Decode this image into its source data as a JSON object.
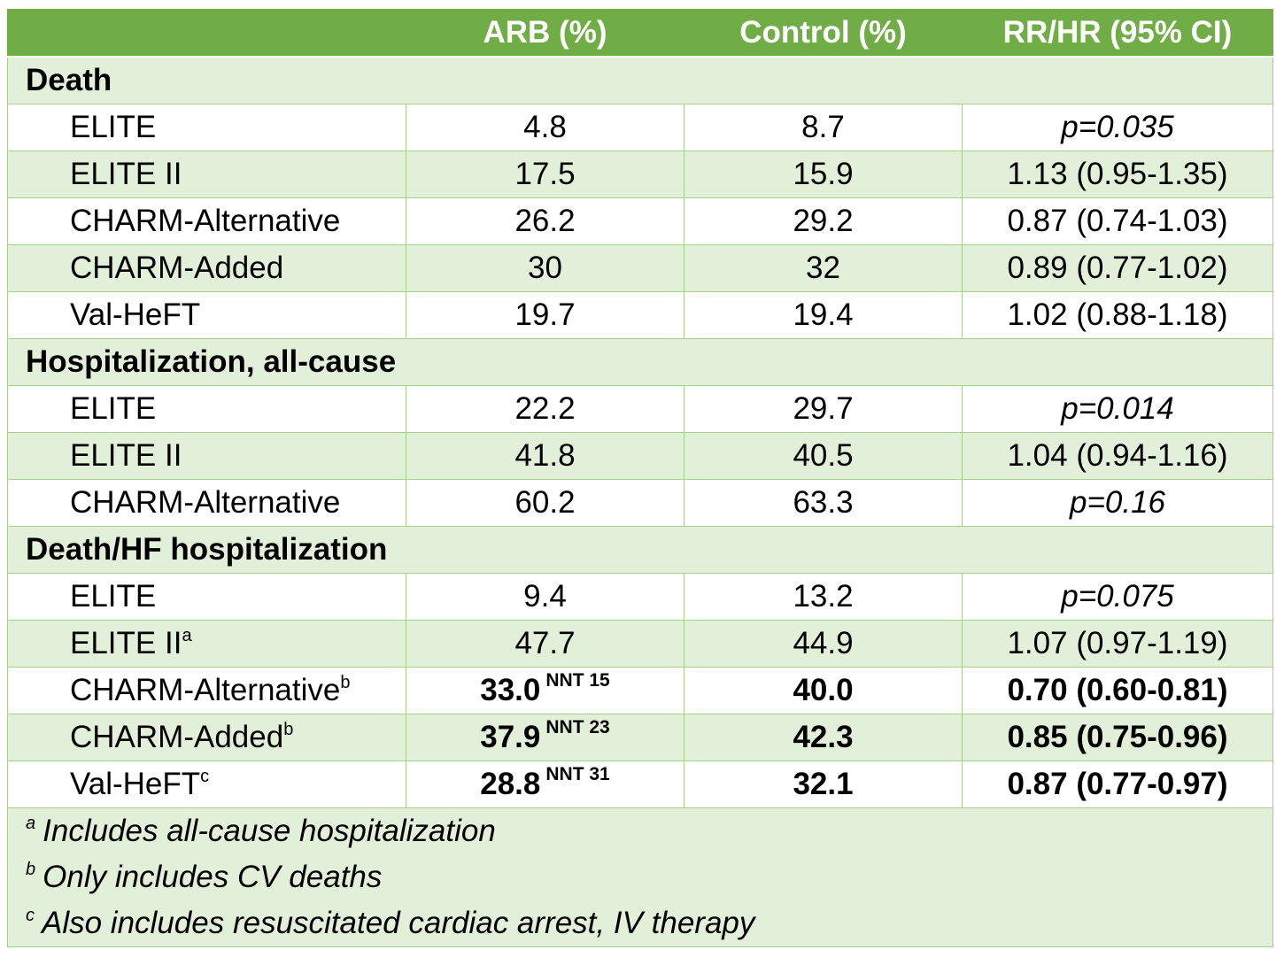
{
  "header": {
    "col0": "",
    "col1": "ARB (%)",
    "col2": "Control (%)",
    "col3": "RR/HR (95% CI)"
  },
  "sections": [
    {
      "title": "Death",
      "rows": [
        {
          "study": "ELITE",
          "sup": "",
          "arb": "4.8",
          "nnt": "",
          "control": "8.7",
          "rr": "p=0.035",
          "italic": true,
          "bold": false
        },
        {
          "study": "ELITE II",
          "sup": "",
          "arb": "17.5",
          "nnt": "",
          "control": "15.9",
          "rr": "1.13 (0.95-1.35)",
          "italic": false,
          "bold": false
        },
        {
          "study": "CHARM-Alternative",
          "sup": "",
          "arb": "26.2",
          "nnt": "",
          "control": "29.2",
          "rr": "0.87 (0.74-1.03)",
          "italic": false,
          "bold": false
        },
        {
          "study": "CHARM-Added",
          "sup": "",
          "arb": "30",
          "nnt": "",
          "control": "32",
          "rr": "0.89 (0.77-1.02)",
          "italic": false,
          "bold": false
        },
        {
          "study": "Val-HeFT",
          "sup": "",
          "arb": "19.7",
          "nnt": "",
          "control": "19.4",
          "rr": "1.02 (0.88-1.18)",
          "italic": false,
          "bold": false
        }
      ]
    },
    {
      "title": "Hospitalization, all-cause",
      "rows": [
        {
          "study": "ELITE",
          "sup": "",
          "arb": "22.2",
          "nnt": "",
          "control": "29.7",
          "rr": "p=0.014",
          "italic": true,
          "bold": false
        },
        {
          "study": "ELITE II",
          "sup": "",
          "arb": "41.8",
          "nnt": "",
          "control": "40.5",
          "rr": "1.04 (0.94-1.16)",
          "italic": false,
          "bold": false
        },
        {
          "study": "CHARM-Alternative",
          "sup": "",
          "arb": "60.2",
          "nnt": "",
          "control": "63.3",
          "rr": "p=0.16",
          "italic": true,
          "bold": false
        }
      ]
    },
    {
      "title": "Death/HF hospitalization",
      "rows": [
        {
          "study": "ELITE",
          "sup": "",
          "arb": "9.4",
          "nnt": "",
          "control": "13.2",
          "rr": "p=0.075",
          "italic": true,
          "bold": false
        },
        {
          "study": "ELITE II",
          "sup": "a",
          "arb": "47.7",
          "nnt": "",
          "control": "44.9",
          "rr": "1.07 (0.97-1.19)",
          "italic": false,
          "bold": false
        },
        {
          "study": "CHARM-Alternative",
          "sup": "b",
          "arb": "33.0",
          "nnt": "NNT 15",
          "control": "40.0",
          "rr": "0.70 (0.60-0.81)",
          "italic": false,
          "bold": true
        },
        {
          "study": "CHARM-Added",
          "sup": "b",
          "arb": "37.9",
          "nnt": "NNT 23",
          "control": "42.3",
          "rr": "0.85 (0.75-0.96)",
          "italic": false,
          "bold": true
        },
        {
          "study": "Val-HeFT",
          "sup": "c",
          "arb": "28.8",
          "nnt": "NNT 31",
          "control": "32.1",
          "rr": "0.87 (0.77-0.97)",
          "italic": false,
          "bold": true
        }
      ]
    }
  ],
  "footnotes": [
    {
      "mark": "a",
      "text": "Includes all-cause hospitalization"
    },
    {
      "mark": "b",
      "text": "Only includes CV deaths"
    },
    {
      "mark": "c",
      "text": "Also includes resuscitated cardiac arrest, IV therapy"
    }
  ],
  "colors": {
    "header_bg": "#70ad47",
    "band": "#e2efd9",
    "border": "#a8d08d"
  }
}
